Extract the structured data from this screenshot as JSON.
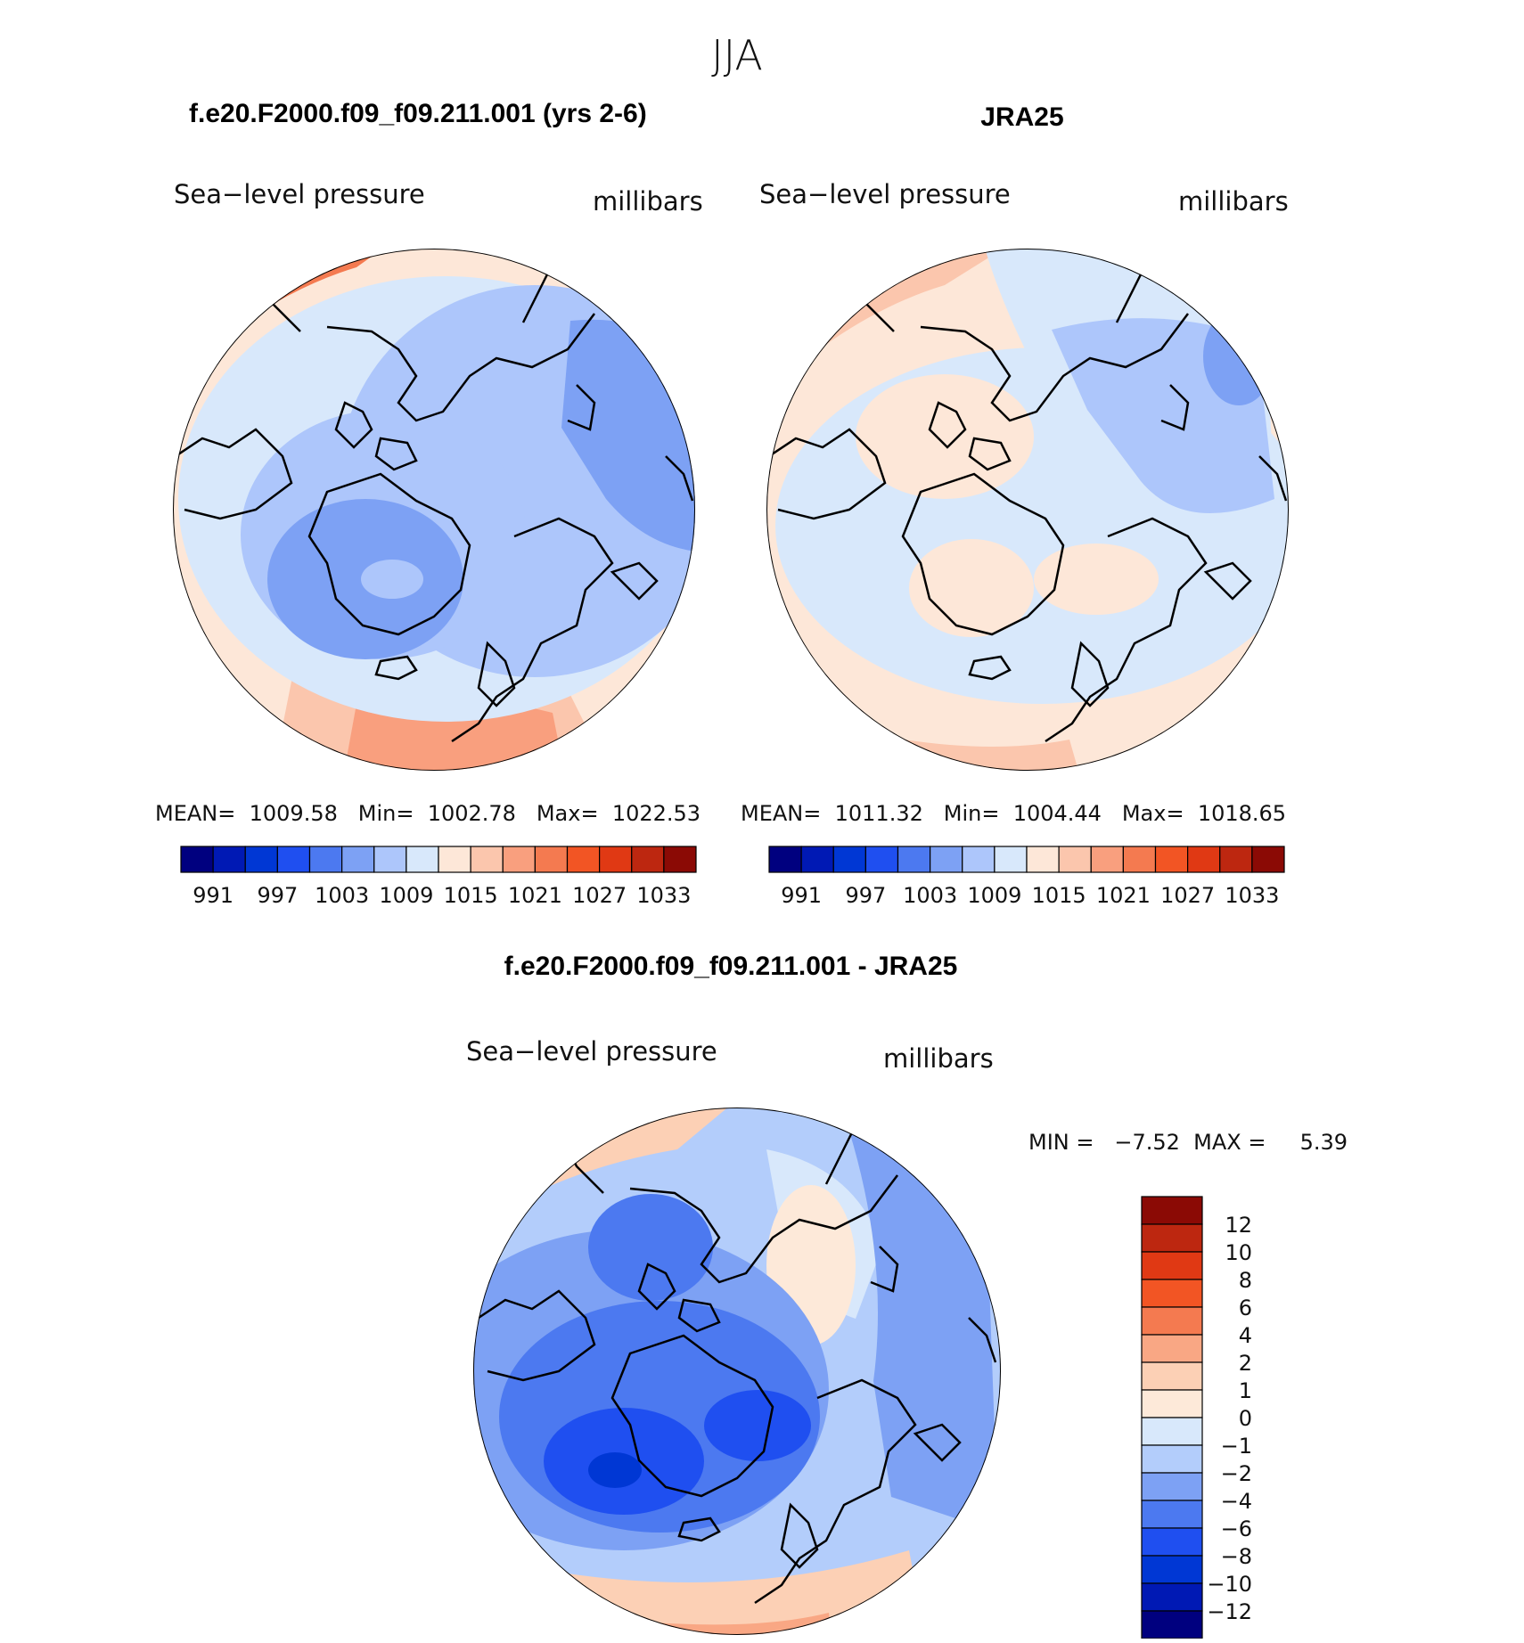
{
  "season": "JJA",
  "units_label": "millibars",
  "field_label": "Sea−level pressure",
  "panels": {
    "model": {
      "title": "f.e20.F2000.f09_f09.211.001 (yrs 2-6)",
      "field": "Sea−level pressure",
      "units": "millibars",
      "stats_text": "MEAN=  1009.58   Min=  1002.78   Max=  1022.53",
      "stats": {
        "mean": 1009.58,
        "min": 1002.78,
        "max": 1022.53
      }
    },
    "obs": {
      "title": "JRA25",
      "field": "Sea−level pressure",
      "units": "millibars",
      "stats_text": "MEAN=  1011.32   Min=  1004.44   Max=  1018.65",
      "stats": {
        "mean": 1011.32,
        "min": 1004.44,
        "max": 1018.65
      }
    },
    "diff": {
      "title": "f.e20.F2000.f09_f09.211.001 - JRA25",
      "field": "Sea−level pressure",
      "units": "millibars",
      "stats_text": "MIN =   −7.52  MAX =     5.39",
      "stats": {
        "min": -7.52,
        "max": 5.39
      }
    }
  },
  "colorbar_abs": {
    "colors": [
      "#00007f",
      "#0019b4",
      "#0037d4",
      "#1f4ff0",
      "#4c79f0",
      "#7da1f4",
      "#adc6fb",
      "#d8e8fb",
      "#fde7d8",
      "#fbc6ad",
      "#f99f7e",
      "#f47a50",
      "#f25524",
      "#e03914",
      "#bd2710",
      "#8b0a05"
    ],
    "tick_labels": [
      "991",
      "997",
      "1003",
      "1009",
      "1015",
      "1021",
      "1027",
      "1033"
    ],
    "tick_values": [
      991,
      997,
      1003,
      1009,
      1015,
      1021,
      1027,
      1033
    ]
  },
  "colorbar_diff": {
    "colors": [
      "#8b0a05",
      "#bd2710",
      "#e03914",
      "#f25524",
      "#f47a50",
      "#f9a784",
      "#fcd0b5",
      "#fde9d9",
      "#d8e8fb",
      "#b3cdfb",
      "#7da1f4",
      "#4c79f0",
      "#1f4ff0",
      "#0037d4",
      "#0019b4",
      "#00007f"
    ],
    "tick_labels": [
      "12",
      "10",
      "8",
      "6",
      "4",
      "2",
      "1",
      "0",
      "−1",
      "−2",
      "−4",
      "−6",
      "−8",
      "−10",
      "−12"
    ],
    "tick_values": [
      12,
      10,
      8,
      6,
      4,
      2,
      1,
      0,
      -1,
      -2,
      -4,
      -6,
      -8,
      -10,
      -12
    ]
  }
}
